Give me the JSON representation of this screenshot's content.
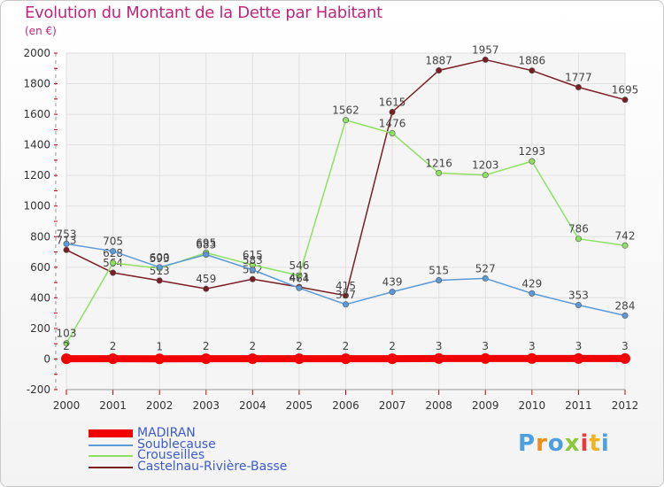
{
  "title": "Evolution du Montant de la Dette par Habitant",
  "subtitle": "(en €)",
  "logo": {
    "text": "Proxiti",
    "colors": [
      "#4da0dc",
      "#f08c1e",
      "#4da0dc",
      "#8cc83c",
      "#e63c3c",
      "#f0b41e",
      "#4da0dc"
    ]
  },
  "chart_data": {
    "type": "line",
    "x": [
      "2000",
      "2001",
      "2002",
      "2003",
      "2004",
      "2005",
      "2006",
      "2007",
      "2008",
      "2009",
      "2010",
      "2011",
      "2012"
    ],
    "ylim": [
      -200,
      2000
    ],
    "yticks": [
      "-200",
      "0",
      "200",
      "400",
      "600",
      "800",
      "1000",
      "1200",
      "1400",
      "1600",
      "1800",
      "2000"
    ],
    "grid": true,
    "legend_position": "bottom-left",
    "series": [
      {
        "name": "Castelnau-Rivière-Basse",
        "color": "#7a1e24",
        "values": [
          713,
          564,
          513,
          459,
          522,
          471,
          415,
          1615,
          1887,
          1957,
          1886,
          1777,
          1695
        ]
      },
      {
        "name": "Crouseilles",
        "color": "#8ee060",
        "values": [
          103,
          628,
          593,
          695,
          615,
          546,
          1562,
          1476,
          1216,
          1203,
          1293,
          786,
          742
        ]
      },
      {
        "name": "Soublecause",
        "color": "#5a9ad8",
        "values": [
          753,
          705,
          600,
          683,
          583,
          464,
          357,
          439,
          515,
          527,
          429,
          353,
          284
        ]
      },
      {
        "name": "MADIRAN",
        "color": "#f00000",
        "values": [
          2,
          2,
          1,
          2,
          2,
          2,
          2,
          2,
          3,
          3,
          3,
          3,
          3
        ]
      }
    ],
    "legend_order": [
      "MADIRAN",
      "Soublecause",
      "Crouseilles",
      "Castelnau-Rivière-Basse"
    ]
  }
}
